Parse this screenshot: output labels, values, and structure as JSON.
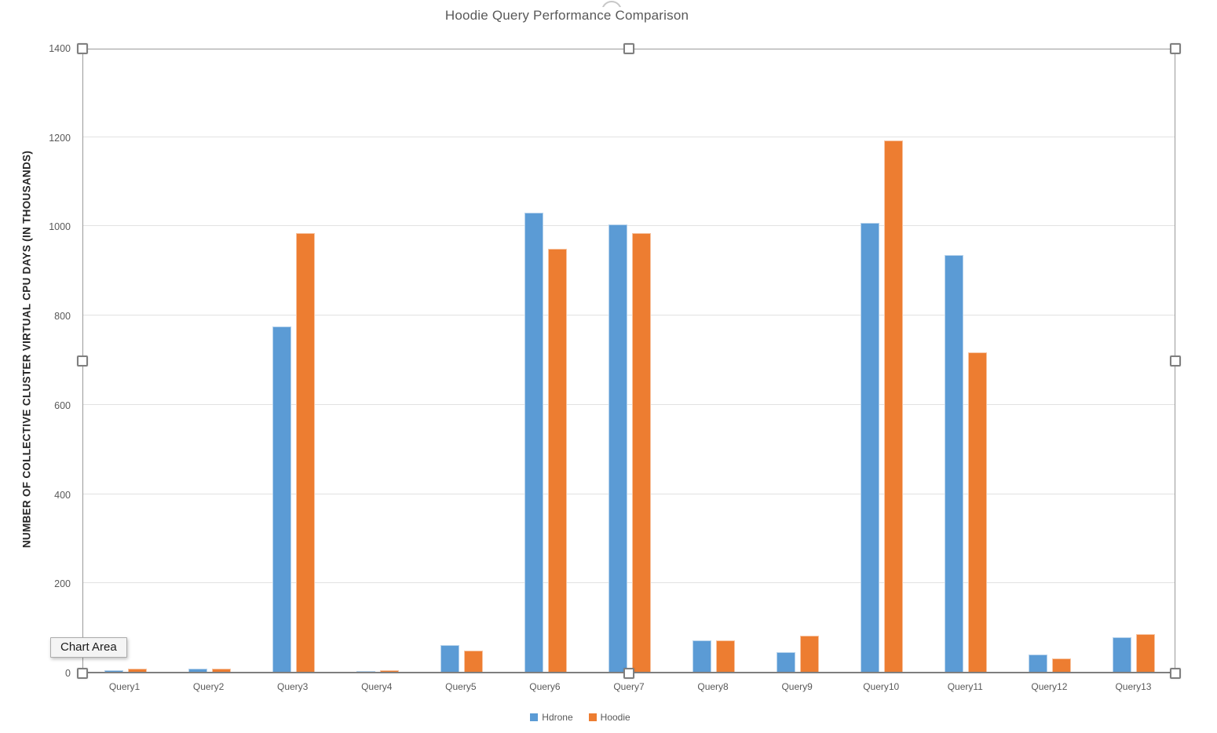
{
  "title": "Hoodie Query Performance Comparison",
  "tooltip": {
    "label": "Chart Area"
  },
  "chart_data": {
    "type": "bar",
    "title": "Hoodie Query Performance Comparison",
    "xlabel": "",
    "ylabel": "NUMBER OF COLLECTIVE CLUSTER VIRTUAL CPU DAYS (IN THOUSANDS)",
    "ylim": [
      0,
      1400
    ],
    "yticks": [
      0,
      200,
      400,
      600,
      800,
      1000,
      1200,
      1400
    ],
    "grid": true,
    "legend_position": "bottom",
    "categories": [
      "Query1",
      "Query2",
      "Query3",
      "Query4",
      "Query5",
      "Query6",
      "Query7",
      "Query8",
      "Query9",
      "Query10",
      "Query11",
      "Query12",
      "Query13"
    ],
    "series": [
      {
        "name": "Hdrone",
        "color": "#5B9BD5",
        "values": [
          5,
          8,
          775,
          4,
          62,
          1030,
          1005,
          72,
          46,
          1008,
          935,
          40,
          79
        ]
      },
      {
        "name": "Hoodie",
        "color": "#ED7D31",
        "values": [
          8,
          8,
          985,
          5,
          50,
          950,
          985,
          73,
          83,
          1193,
          718,
          32,
          86
        ]
      }
    ]
  },
  "colors": {
    "grid": "#E2E2E2",
    "axis_text": "#595959",
    "selection_border": "#9A9A9A"
  }
}
